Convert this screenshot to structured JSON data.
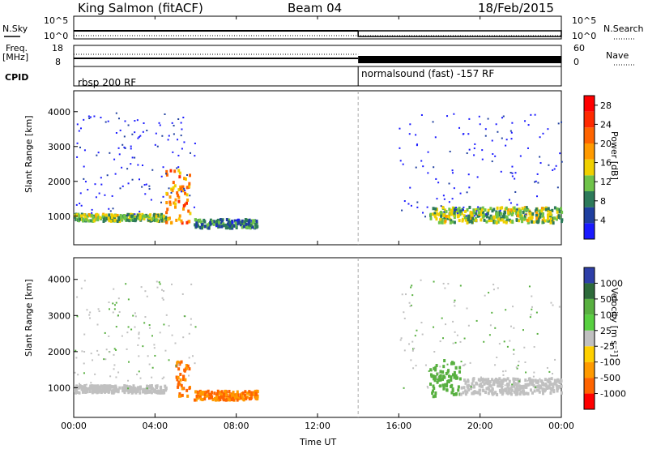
{
  "header": {
    "station": "King Salmon (fitACF)",
    "beam": "Beam 04",
    "date": "18/Feb/2015"
  },
  "top_panels": {
    "nsky_label": "N.Sky",
    "nsky_ticks": [
      "10^5",
      "10^0"
    ],
    "nsearch_label": "N.Search",
    "nsearch_ticks": [
      "10^5",
      "10^0"
    ],
    "freq_label": "Freq.",
    "freq_unit": "[MHz]",
    "freq_ticks": [
      "18",
      "8"
    ],
    "nave_label": "Nave",
    "nave_ticks": [
      "60",
      "0"
    ],
    "cpid_label": "CPID",
    "cpid_segments": [
      {
        "start_hour": 0,
        "end_hour": 14,
        "label": "rbsp 200 RF"
      },
      {
        "start_hour": 14,
        "end_hour": 24,
        "label": "normalsound (fast) -157 RF"
      }
    ]
  },
  "chart_data": [
    {
      "type": "heatmap",
      "title": "",
      "xlabel": "Time UT",
      "ylabel": "Slant Range [km]",
      "xlim": [
        0,
        24
      ],
      "ylim": [
        180,
        4600
      ],
      "x_ticks": [
        "00:00",
        "04:00",
        "08:00",
        "12:00",
        "16:00",
        "20:00",
        "00:00"
      ],
      "y_ticks": [
        "1000",
        "2000",
        "3000",
        "4000"
      ],
      "colorbar": {
        "label": "Power [dB]",
        "ticks": [
          "4",
          "8",
          "12",
          "16",
          "20",
          "24",
          "28"
        ],
        "range": [
          0,
          30
        ],
        "colors": [
          "#1a1aff",
          "#1f3f9f",
          "#2d7a5a",
          "#6fc34a",
          "#f0d000",
          "#ff9a00",
          "#ff6400",
          "#ff2a00",
          "#ff0000"
        ]
      },
      "features": [
        {
          "name": "ground scatter band",
          "start_hour": 0,
          "end_hour": 4.5,
          "range_km": [
            900,
            1100
          ],
          "power_db": 12
        },
        {
          "name": "arc echoes",
          "start_hour": 4.5,
          "end_hour": 5.7,
          "range_km": [
            800,
            2400
          ],
          "power_db": 20
        },
        {
          "name": "late band",
          "start_hour": 5.9,
          "end_hour": 9,
          "range_km": [
            700,
            950
          ],
          "power_db": 8
        },
        {
          "name": "evening band",
          "start_hour": 17.5,
          "end_hour": 24,
          "range_km": [
            850,
            1300
          ],
          "power_db": 12
        }
      ]
    },
    {
      "type": "heatmap",
      "title": "",
      "xlabel": "Time UT",
      "ylabel": "Slant Range [km]",
      "xlim": [
        0,
        24
      ],
      "ylim": [
        180,
        4600
      ],
      "x_ticks": [
        "00:00",
        "04:00",
        "08:00",
        "12:00",
        "16:00",
        "20:00",
        "00:00"
      ],
      "y_ticks": [
        "1000",
        "2000",
        "3000",
        "4000"
      ],
      "colorbar": {
        "label": "Velocity [m s⁻¹]",
        "ticks": [
          "1000",
          "500",
          "100",
          "25",
          "-25",
          "-100",
          "-500",
          "-1000"
        ],
        "colors": [
          "#2e3fa8",
          "#2d6a3a",
          "#58b040",
          "#58d040",
          "#c0c0c0",
          "#ffd000",
          "#ff9a00",
          "#ff6400",
          "#ff0000"
        ]
      },
      "features": [
        {
          "name": "ground scatter",
          "start_hour": 0,
          "end_hour": 4.5,
          "range_km": [
            900,
            1100
          ],
          "velocity": 0
        },
        {
          "name": "receding arc",
          "start_hour": 5,
          "end_hour": 5.7,
          "range_km": [
            800,
            1800
          ],
          "velocity": -200
        },
        {
          "name": "receding band",
          "start_hour": 5.9,
          "end_hour": 9,
          "range_km": [
            700,
            950
          ],
          "velocity": -300
        },
        {
          "name": "approaching patch",
          "start_hour": 17.5,
          "end_hour": 19,
          "range_km": [
            800,
            1800
          ],
          "velocity": 100
        },
        {
          "name": "ground scatter evening",
          "start_hour": 19,
          "end_hour": 24,
          "range_km": [
            850,
            1300
          ],
          "velocity": 0
        }
      ]
    }
  ]
}
